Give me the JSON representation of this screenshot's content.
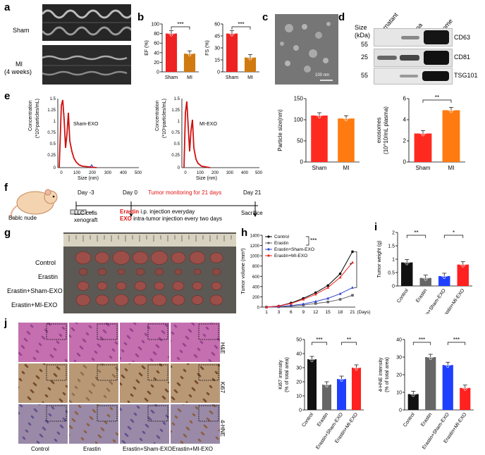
{
  "panels": {
    "a": {
      "letter": "a",
      "sham_label": "Sham",
      "mi_label": "MI",
      "mi_sub": "(4 weeks)"
    },
    "b": {
      "letter": "b"
    },
    "c": {
      "letter": "c",
      "scale": "100 nm"
    },
    "d": {
      "letter": "d",
      "size_label": "Size",
      "size_unit": "(kDa)",
      "lanes": [
        "Supernatant",
        "Plasma",
        "Exosome"
      ],
      "bands": [
        {
          "kda": "55",
          "protein": "CD63"
        },
        {
          "kda": "25",
          "protein": "CD81"
        },
        {
          "kda": "55",
          "protein": "TSG101"
        }
      ]
    },
    "e": {
      "letter": "e",
      "left_title": "Sham-EXO",
      "right_title": "MI-EXO",
      "conc_label": "Concentration",
      "conc_unit": "(*10⁹particles/mL)",
      "size_label": "Size (nm)"
    },
    "f": {
      "letter": "f",
      "mouse": "Bablc nude",
      "day_m3": "Day -3",
      "day_0": "Day 0",
      "day_21": "Day 21",
      "monitor": "Tumor monitoring for 21 days",
      "llc1": "LLC cells",
      "llc2": "xenograft",
      "erastin_bold": "Erastin",
      "erastin_rest": " i.p. injection everyday",
      "exo_bold": "EXO",
      "exo_rest": " intra-tumor injection every two days",
      "sacrifice": "Sacrifice"
    },
    "g": {
      "letter": "g",
      "rows": [
        "Control",
        "Erastin",
        "Erastin+Sham-EXO",
        "Erastin+MI-EXO"
      ]
    },
    "h": {
      "letter": "h"
    },
    "i": {
      "letter": "i"
    },
    "j": {
      "letter": "j",
      "stains": [
        "H&E",
        "Ki67",
        "4-HNE"
      ],
      "cols": [
        "Control",
        "Erastin",
        "Erastin+Sham-EXO",
        "Erastin+MI-EXO"
      ]
    }
  },
  "chart_data": [
    {
      "id": "ef",
      "type": "bar",
      "categories": [
        "Sham",
        "MI"
      ],
      "values": [
        80,
        38
      ],
      "ylabel": "EF (%)",
      "ylim": [
        0,
        100
      ],
      "yticks": [
        0,
        20,
        40,
        60,
        80,
        100
      ],
      "sig": "***",
      "colors": [
        "#ee2222",
        "#d07a10"
      ]
    },
    {
      "id": "fs",
      "type": "bar",
      "categories": [
        "Sham",
        "MI"
      ],
      "values": [
        48,
        18
      ],
      "ylabel": "FS (%)",
      "ylim": [
        0,
        60
      ],
      "yticks": [
        0,
        15,
        30,
        45,
        60
      ],
      "sig": "***",
      "colors": [
        "#ee2222",
        "#d07a10"
      ]
    },
    {
      "id": "particle_size",
      "type": "bar",
      "categories": [
        "Sham",
        "MI"
      ],
      "values": [
        110,
        103
      ],
      "ylabel": "Particle size(nm)",
      "ylim": [
        0,
        150
      ],
      "yticks": [
        0,
        50,
        100,
        150
      ],
      "colors": [
        "#ff2a1f",
        "#ff7a10"
      ]
    },
    {
      "id": "exosomes",
      "type": "bar",
      "categories": [
        "Sham",
        "MI"
      ],
      "values": [
        2.7,
        4.9
      ],
      "ylabel": "exosomes",
      "ylabel2": "(10^10/mL plasma)",
      "ylim": [
        0,
        6
      ],
      "yticks": [
        0,
        2,
        4,
        6
      ],
      "sig": "**",
      "colors": [
        "#ff2a1f",
        "#ff7a10"
      ]
    },
    {
      "id": "tumor_volume",
      "type": "line",
      "x": [
        1,
        3,
        6,
        9,
        12,
        15,
        18,
        21
      ],
      "xlabel": "(Days)",
      "ylabel": "Tumor volume (mm³)",
      "ylim": [
        0,
        1400
      ],
      "yticks": [
        0,
        200,
        400,
        600,
        800,
        1000,
        1200,
        1400
      ],
      "series": [
        {
          "name": "Control",
          "values": [
            0,
            20,
            80,
            170,
            280,
            420,
            650,
            1080
          ],
          "color": "#000000"
        },
        {
          "name": "Erastin",
          "values": [
            0,
            5,
            20,
            40,
            70,
            100,
            150,
            230
          ],
          "color": "#666666"
        },
        {
          "name": "Erastin+Sham-EXO",
          "values": [
            0,
            10,
            30,
            60,
            110,
            170,
            260,
            380
          ],
          "color": "#3344cc"
        },
        {
          "name": "Erastin+MI-EXO",
          "values": [
            0,
            20,
            70,
            150,
            250,
            380,
            580,
            870
          ],
          "color": "#ee2222"
        }
      ],
      "sig1": "***",
      "sig2": "*"
    },
    {
      "id": "tumor_weight",
      "type": "bar",
      "categories": [
        "Control",
        "Erastin",
        "Erastin+Sham-EXO",
        "Erastin+MI-EXO"
      ],
      "values": [
        0.88,
        0.3,
        0.37,
        0.8
      ],
      "ylabel": "Tumor weight (g)",
      "ylim": [
        0,
        2.0
      ],
      "yticks": [
        0,
        0.5,
        1.0,
        1.5,
        2.0
      ],
      "sig1": "**",
      "sig2": "*",
      "colors": [
        "#111111",
        "#666666",
        "#1f3fff",
        "#ff2020"
      ]
    },
    {
      "id": "ki67",
      "type": "bar",
      "categories": [
        "Control",
        "Erastin",
        "Erastin+Sham-EXO",
        "Erastin+MI-EXO"
      ],
      "values": [
        36,
        18,
        22,
        30
      ],
      "ylabel": "Ki67 intensity",
      "ylabel2": "(% of total area)",
      "ylim": [
        0,
        50
      ],
      "yticks": [
        0,
        10,
        20,
        30,
        40,
        50
      ],
      "sig1": "***",
      "sig2": "**",
      "colors": [
        "#111111",
        "#666666",
        "#1f3fff",
        "#ff2020"
      ]
    },
    {
      "id": "hne",
      "type": "bar",
      "categories": [
        "Control",
        "Erastin",
        "Erastin+Sham-EXO",
        "Erastin+MI-EXO"
      ],
      "values": [
        9,
        30,
        25.5,
        12.5
      ],
      "ylabel": "4-HNE intensity",
      "ylabel2": "(% of total area)",
      "ylim": [
        0,
        40
      ],
      "yticks": [
        0,
        10,
        20,
        30,
        40
      ],
      "sig1": "***",
      "sig2": "***",
      "colors": [
        "#111111",
        "#666666",
        "#1f3fff",
        "#ff2020"
      ]
    }
  ]
}
